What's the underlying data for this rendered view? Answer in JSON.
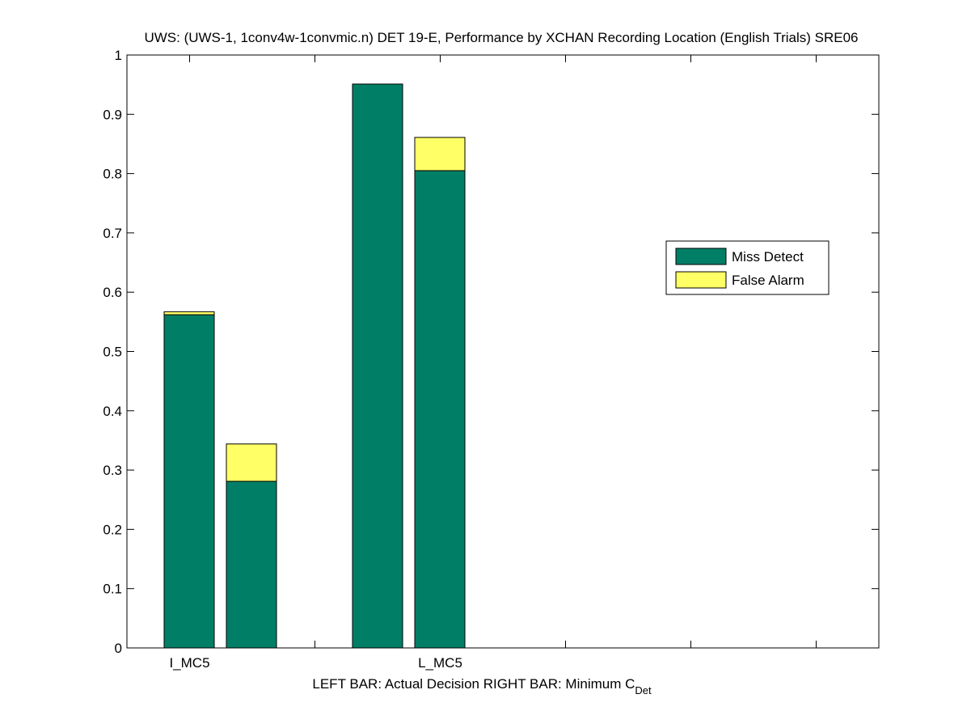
{
  "chart_data": {
    "type": "bar",
    "stacked": true,
    "title": "UWS: (UWS-1, 1conv4w-1convmic.n) DET 19-E,  Performance by XCHAN Recording Location (English Trials) SRE06",
    "categories": [
      "I_MC5",
      "L_MC5"
    ],
    "xlabel": {
      "main": "LEFT BAR: Actual Decision     RIGHT BAR: Minimum C",
      "subscript": "Det"
    },
    "ylabel": "",
    "ylim": [
      0,
      1
    ],
    "yticks": [
      "0",
      "0.1",
      "0.2",
      "0.3",
      "0.4",
      "0.5",
      "0.6",
      "0.7",
      "0.8",
      "0.9",
      "1"
    ],
    "bar_pairs": [
      "Actual Decision",
      "Minimum C_Det"
    ],
    "series": [
      {
        "name": "Miss Detect",
        "color": "#007f66",
        "values": [
          [
            0.562,
            0.281
          ],
          [
            0.951,
            0.805
          ]
        ]
      },
      {
        "name": "False Alarm",
        "color": "#ffff66",
        "values": [
          [
            0.005,
            0.063
          ],
          [
            0.0,
            0.056
          ]
        ]
      }
    ],
    "legend_position": "right",
    "grid": false
  }
}
